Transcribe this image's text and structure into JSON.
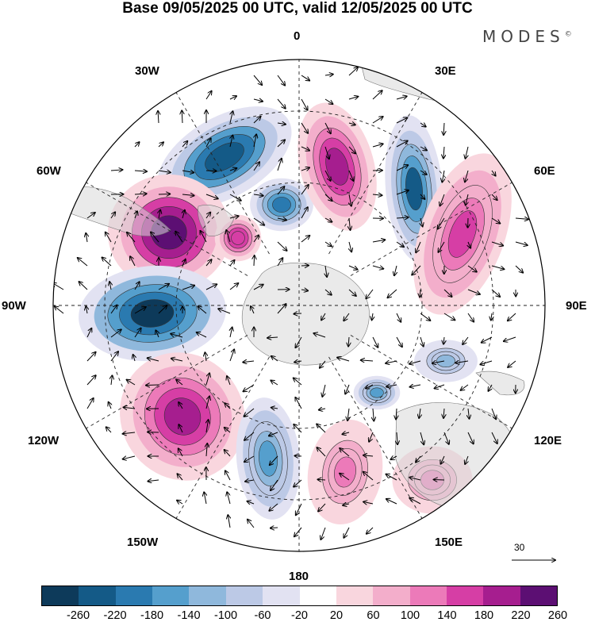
{
  "title": "Base 09/05/2025 00 UTC, valid 12/05/2025 00 UTC",
  "brand": "MODES",
  "brand_mark": "©",
  "longitude_labels": {
    "top": "0",
    "top_left": "30W",
    "top_right": "30E",
    "upper_left": "60W",
    "upper_right": "60E",
    "left": "90W",
    "right": "90E",
    "lower_left": "120W",
    "lower_right": "120E",
    "bottom_left": "150W",
    "bottom_right": "150E",
    "bottom": "180"
  },
  "vector_reference": "30",
  "colorbar": {
    "ticks": [
      "-260",
      "-220",
      "-180",
      "-140",
      "-100",
      "-60",
      "-20",
      "20",
      "60",
      "100",
      "140",
      "180",
      "220",
      "260"
    ],
    "colors": [
      "#0d3a5a",
      "#145a87",
      "#2a7ab0",
      "#559fcd",
      "#8fb8dc",
      "#bcc9e6",
      "#e2e2f2",
      "#ffffff",
      "#f9d6de",
      "#f3aecb",
      "#ec7ab9",
      "#d63ea5",
      "#a61e8f",
      "#5c0f73"
    ]
  },
  "anomaly_centres": [
    {
      "sign": "neg",
      "value": -240
    },
    {
      "sign": "pos",
      "value": 240
    },
    {
      "sign": "neg",
      "value": -200
    },
    {
      "sign": "pos",
      "value": 200
    },
    {
      "sign": "neg",
      "value": -220
    },
    {
      "sign": "pos",
      "value": 160
    },
    {
      "sign": "neg",
      "value": -260
    },
    {
      "sign": "pos",
      "value": 220
    },
    {
      "sign": "neg",
      "value": -160
    },
    {
      "sign": "pos",
      "value": 120
    },
    {
      "sign": "neg",
      "value": -120
    },
    {
      "sign": "pos",
      "value": 120
    },
    {
      "sign": "neg",
      "value": -160
    },
    {
      "sign": "pos",
      "value": 180
    }
  ]
}
